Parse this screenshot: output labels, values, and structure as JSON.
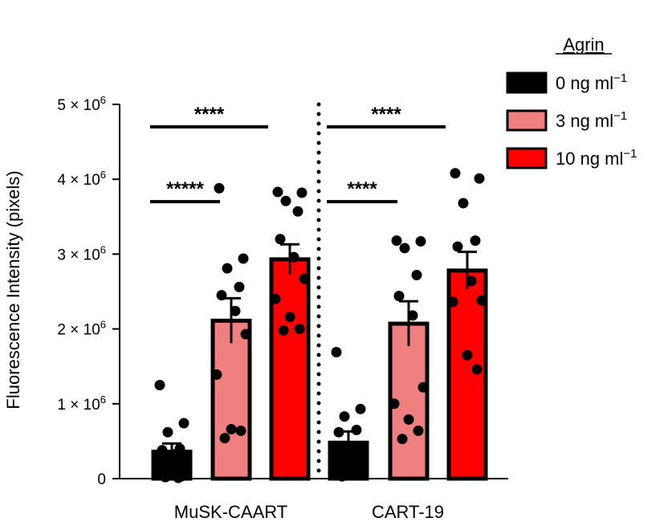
{
  "chart_data": {
    "type": "bar",
    "ylabel": "Fluorescence Intensity (pixels)",
    "ylim": [
      0,
      5000000
    ],
    "yticks": [
      {
        "value": 0,
        "mantissa": "0",
        "exp": ""
      },
      {
        "value": 1000000,
        "mantissa": "1",
        "exp": "6"
      },
      {
        "value": 2000000,
        "mantissa": "2",
        "exp": "6"
      },
      {
        "value": 3000000,
        "mantissa": "3",
        "exp": "6"
      },
      {
        "value": 4000000,
        "mantissa": "4",
        "exp": "6"
      },
      {
        "value": 5000000,
        "mantissa": "5",
        "exp": "6"
      }
    ],
    "groups": [
      "MuSK-CAART",
      "CART-19"
    ],
    "legend": {
      "title": "Agrin",
      "position": "top-right",
      "entries": [
        {
          "text": "0 ng ml",
          "sup": "−1",
          "color": "#000000"
        },
        {
          "text": "3 ng ml",
          "sup": "−1",
          "color": "#f08080"
        },
        {
          "text": "10 ng ml",
          "sup": "−1",
          "color": "#ff0000"
        }
      ]
    },
    "series": [
      {
        "name": "0 ng ml−1",
        "color": "#000000",
        "values": [
          360000,
          480000
        ],
        "errors": [
          110000,
          150000
        ],
        "points": [
          [
            1250000,
            740000,
            620000,
            400000,
            380000,
            330000,
            250000,
            150000,
            100000,
            30000,
            20000,
            10000
          ],
          [
            1690000,
            930000,
            830000,
            650000,
            620000,
            420000,
            340000,
            260000,
            180000,
            100000,
            30000
          ]
        ]
      },
      {
        "name": "3 ng ml−1",
        "color": "#f08080",
        "values": [
          2110000,
          2070000
        ],
        "errors": [
          300000,
          300000
        ],
        "points": [
          [
            3880000,
            2940000,
            2810000,
            2560000,
            2450000,
            2240000,
            1930000,
            1390000,
            660000,
            640000,
            540000
          ],
          [
            3180000,
            3170000,
            3080000,
            2720000,
            2440000,
            2180000,
            1220000,
            1000000,
            790000,
            640000,
            530000
          ]
        ]
      },
      {
        "name": "10 ng ml−1",
        "color": "#ff0000",
        "values": [
          2930000,
          2780000
        ],
        "errors": [
          200000,
          250000
        ],
        "points": [
          [
            3830000,
            3820000,
            3710000,
            3570000,
            3200000,
            2960000,
            2670000,
            2400000,
            2160000,
            2000000,
            1980000
          ],
          [
            4080000,
            4010000,
            3680000,
            3180000,
            3100000,
            2640000,
            2380000,
            2360000,
            1650000,
            1460000
          ]
        ]
      }
    ],
    "significance": [
      {
        "label": "*****",
        "group": 0,
        "from": 0,
        "to": 1,
        "y": 3700000
      },
      {
        "label": "****",
        "group": 0,
        "from": 0,
        "to": 2,
        "y": 4700000
      },
      {
        "label": "****",
        "group": 1,
        "from": 0,
        "to": 1,
        "y": 3700000
      },
      {
        "label": "****",
        "group": 1,
        "from": 0,
        "to": 2,
        "y": 4700000
      }
    ],
    "grid": false
  }
}
